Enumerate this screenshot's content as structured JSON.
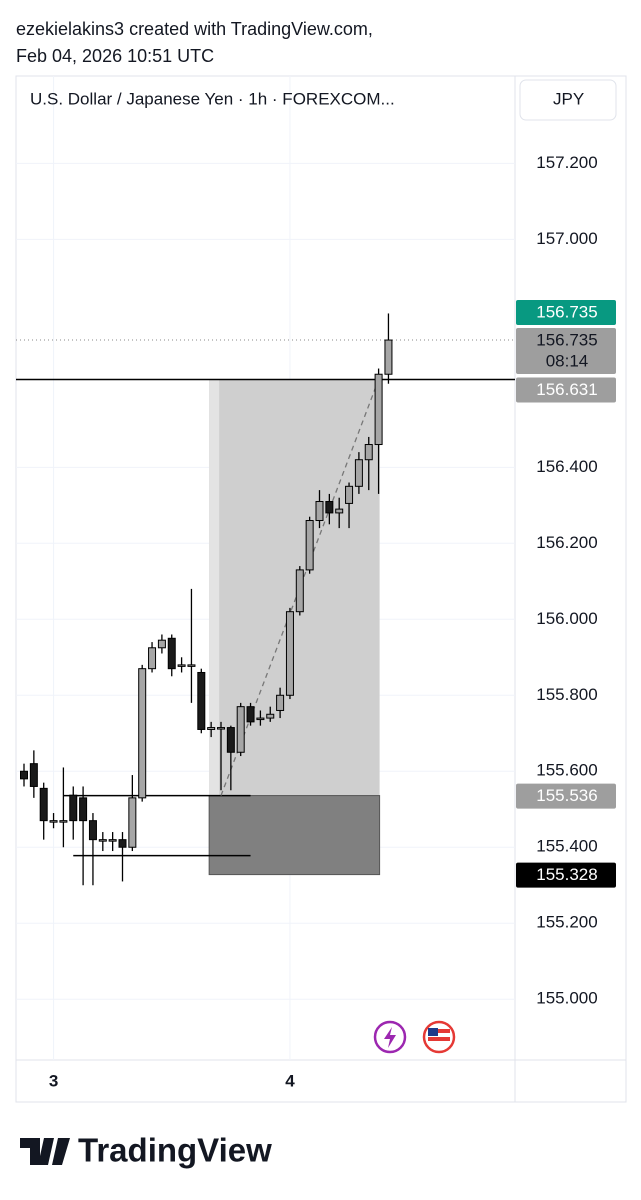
{
  "header": {
    "line1": "ezekielakins3 created with TradingView.com,",
    "line2": "Feb 04, 2026 10:51 UTC"
  },
  "chart_data": {
    "type": "candlestick",
    "title": "U.S. Dollar / Japanese Yen · 1h · FOREXCOM...",
    "currency": "JPY",
    "categories": [
      null,
      null,
      null,
      "3",
      null,
      null,
      null,
      null,
      null,
      null,
      null,
      null,
      null,
      null,
      null,
      null,
      null,
      null,
      null,
      null,
      null,
      null,
      null,
      null,
      null,
      null,
      null,
      "4",
      null,
      null,
      null,
      null,
      null,
      null,
      null,
      null,
      null,
      null
    ],
    "open": [
      155.6,
      155.62,
      155.555,
      155.47,
      155.47,
      155.537,
      155.53,
      155.47,
      155.42,
      155.42,
      155.42,
      155.4,
      155.53,
      155.87,
      155.925,
      155.95,
      155.88,
      155.88,
      155.86,
      155.71,
      155.715,
      155.715,
      155.65,
      155.77,
      155.74,
      155.74,
      155.76,
      155.8,
      156.02,
      156.13,
      156.26,
      156.31,
      156.28,
      156.305,
      156.35,
      156.42,
      156.46,
      156.645
    ],
    "high": [
      155.62,
      155.655,
      155.57,
      155.49,
      155.61,
      155.56,
      155.56,
      155.49,
      155.44,
      155.44,
      155.44,
      155.59,
      155.88,
      155.94,
      155.96,
      155.96,
      155.9,
      156.08,
      155.87,
      155.73,
      155.73,
      155.72,
      155.78,
      155.78,
      155.76,
      155.77,
      155.82,
      156.03,
      156.14,
      156.27,
      156.34,
      156.33,
      156.32,
      156.36,
      156.44,
      156.48,
      156.66,
      156.805
    ],
    "low": [
      155.56,
      155.53,
      155.42,
      155.45,
      155.4,
      155.42,
      155.3,
      155.3,
      155.39,
      155.39,
      155.31,
      155.39,
      155.52,
      155.86,
      155.91,
      155.85,
      155.86,
      155.78,
      155.7,
      155.69,
      155.55,
      155.55,
      155.64,
      155.72,
      155.72,
      155.73,
      155.74,
      155.79,
      156.01,
      156.12,
      156.24,
      156.25,
      156.24,
      156.24,
      156.33,
      156.34,
      156.33,
      156.62
    ],
    "close": [
      155.58,
      155.56,
      155.47,
      155.47,
      155.47,
      155.47,
      155.47,
      155.42,
      155.42,
      155.42,
      155.4,
      155.53,
      155.87,
      155.925,
      155.945,
      155.87,
      155.88,
      155.88,
      155.71,
      155.715,
      155.715,
      155.65,
      155.77,
      155.73,
      155.74,
      155.75,
      155.8,
      156.02,
      156.13,
      156.26,
      156.31,
      156.28,
      156.29,
      156.35,
      156.42,
      156.46,
      156.645,
      156.735
    ],
    "up_color": "#a6a6a6",
    "down_color": "#1a1a1a",
    "ylim": [
      154.84,
      157.43
    ],
    "yticks": [
      {
        "value": 157.2,
        "label": "157.200"
      },
      {
        "value": 157.0,
        "label": "157.000"
      },
      {
        "value": 156.4,
        "label": "156.400"
      },
      {
        "value": 156.2,
        "label": "156.200"
      },
      {
        "value": 156.0,
        "label": "156.000"
      },
      {
        "value": 155.8,
        "label": "155.800"
      },
      {
        "value": 155.6,
        "label": "155.600"
      },
      {
        "value": 155.4,
        "label": "155.400"
      },
      {
        "value": 155.2,
        "label": "155.200"
      },
      {
        "value": 155.0,
        "label": "155.000"
      }
    ],
    "grid": true,
    "position": {
      "entry": 155.536,
      "target": 156.631,
      "stop": 155.328
    },
    "price_labels": [
      {
        "value": 156.735,
        "label": "156.735",
        "color": "#089981",
        "text_color": "#ffffff"
      },
      {
        "value": 156.735,
        "label": "156.735",
        "color": "#9e9e9e",
        "text_color": "#131722"
      },
      {
        "value": 156.631,
        "label": "156.631",
        "color": "#9e9e9e",
        "text_color": "#ffffff"
      },
      {
        "value": 155.536,
        "label": "155.536",
        "color": "#9e9e9e",
        "text_color": "#ffffff"
      },
      {
        "value": 155.328,
        "label": "155.328",
        "color": "#000000",
        "text_color": "#ffffff"
      }
    ],
    "countdown": "08:14"
  },
  "footer": {
    "brand": "TradingView"
  }
}
